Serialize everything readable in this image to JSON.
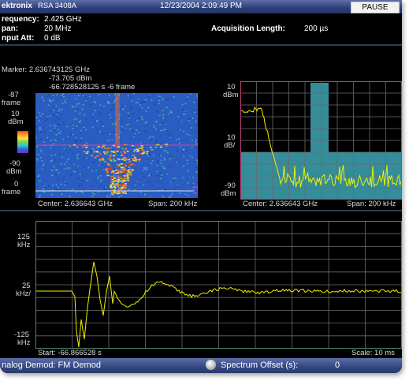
{
  "titlebar": {
    "brand": "ektronix",
    "model": "RSA 3408A",
    "datetime": "12/23/2004 2:09:49 PM",
    "pause_label": "PAUSE"
  },
  "settings": {
    "frequency_label": "requency:",
    "frequency_value": "2.425 GHz",
    "span_label": "pan:",
    "span_value": "20 MHz",
    "input_att_label": "nput Att:",
    "input_att_value": "0 dB",
    "acq_label": "Acquisition Length:",
    "acq_value": "200 µs"
  },
  "marker": {
    "line1": "Marker: 2.636743125 GHz",
    "line2": "-73.705 dBm",
    "line3": "-66.728528125 s  -6 frame"
  },
  "spectrogram": {
    "y_top": "-87",
    "y_top_unit": "frame",
    "y_scale": "10",
    "y_scale_unit": "dBm",
    "y_low": "-90",
    "y_low_unit": "dBm",
    "y_bottom": "0",
    "y_bottom_unit": "frame",
    "center": "Center: 2.636643 GHz",
    "span": "Span: 200 kHz"
  },
  "spectrum": {
    "y_top": "10",
    "y_top_unit": "dBm",
    "y_mid": "10",
    "y_mid_unit": "dB/",
    "y_bottom": "-90",
    "y_bottom_unit": "dBm",
    "center": "Center: 2.636643 GHz",
    "span": "Span: 200 kHz"
  },
  "fm_demod": {
    "y_top": "125",
    "y_top_unit": "kHz",
    "y_mid": "25",
    "y_mid_unit": "kHz/",
    "y_bottom": "-125",
    "y_bottom_unit": "kHz",
    "start": "Start: -66.866528 s",
    "scale": "Scale: 10 ms"
  },
  "statusbar": {
    "mode": "nalog Demod: FM Demod",
    "offset_label": "Spectrum Offset (s):",
    "offset_value": "0"
  },
  "colors": {
    "trace": "#f0f000",
    "spectrum_border": "#c0407a",
    "fm_border": "#4a8a6a",
    "grid": "#6b6b6b",
    "titlebar": "#2d3f78"
  }
}
